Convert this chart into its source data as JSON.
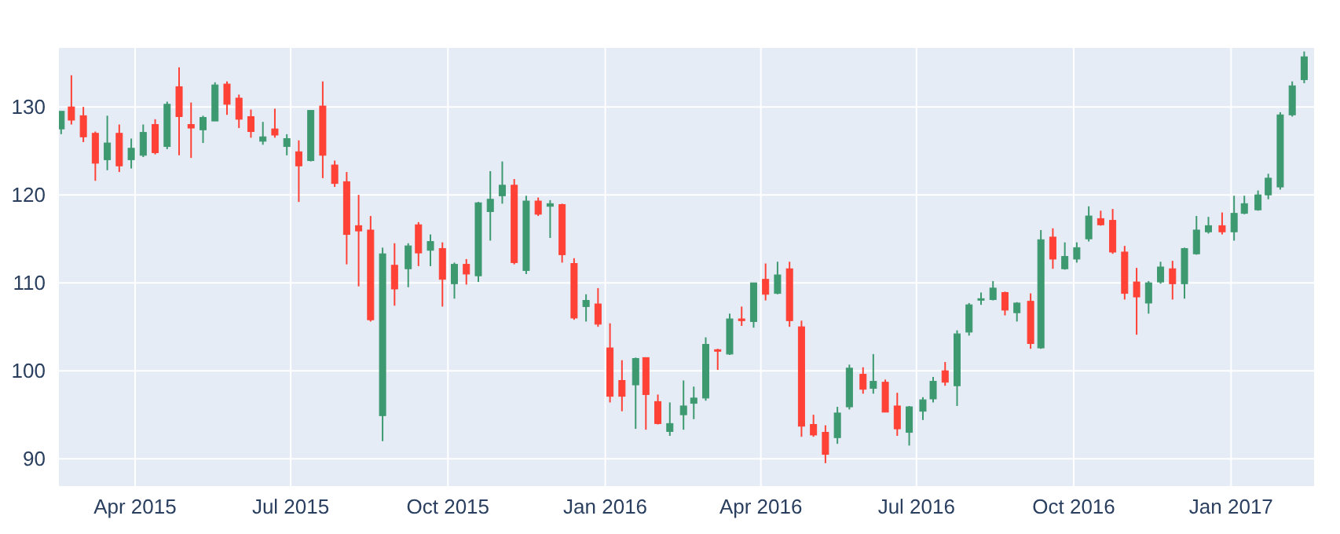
{
  "chart_data": {
    "type": "candlestick",
    "grid": true,
    "xlim": [
      "2015-02-15",
      "2017-02-19"
    ],
    "ylim": [
      86.8,
      136.8
    ],
    "yticks": [
      90,
      100,
      110,
      120,
      130
    ],
    "xticks": [
      {
        "value": "2015-04-01",
        "label": "Apr 2015"
      },
      {
        "value": "2015-07-01",
        "label": "Jul 2015"
      },
      {
        "value": "2015-10-01",
        "label": "Oct 2015"
      },
      {
        "value": "2016-01-01",
        "label": "Jan 2016"
      },
      {
        "value": "2016-04-01",
        "label": "Apr 2016"
      },
      {
        "value": "2016-07-01",
        "label": "Jul 2016"
      },
      {
        "value": "2016-10-01",
        "label": "Oct 2016"
      },
      {
        "value": "2017-01-01",
        "label": "Jan 2017"
      }
    ],
    "x": [
      "2015-02-17",
      "2015-02-23",
      "2015-03-02",
      "2015-03-09",
      "2015-03-16",
      "2015-03-23",
      "2015-03-30",
      "2015-04-06",
      "2015-04-13",
      "2015-04-20",
      "2015-04-27",
      "2015-05-04",
      "2015-05-11",
      "2015-05-18",
      "2015-05-25",
      "2015-06-01",
      "2015-06-08",
      "2015-06-15",
      "2015-06-22",
      "2015-06-29",
      "2015-07-06",
      "2015-07-13",
      "2015-07-20",
      "2015-07-27",
      "2015-08-03",
      "2015-08-10",
      "2015-08-17",
      "2015-08-24",
      "2015-08-31",
      "2015-09-08",
      "2015-09-14",
      "2015-09-21",
      "2015-09-28",
      "2015-10-05",
      "2015-10-12",
      "2015-10-19",
      "2015-10-26",
      "2015-11-02",
      "2015-11-09",
      "2015-11-16",
      "2015-11-23",
      "2015-11-30",
      "2015-12-07",
      "2015-12-14",
      "2015-12-21",
      "2015-12-28",
      "2016-01-04",
      "2016-01-11",
      "2016-01-19",
      "2016-01-25",
      "2016-02-01",
      "2016-02-08",
      "2016-02-16",
      "2016-02-22",
      "2016-02-29",
      "2016-03-07",
      "2016-03-14",
      "2016-03-21",
      "2016-03-28",
      "2016-04-04",
      "2016-04-11",
      "2016-04-18",
      "2016-04-25",
      "2016-05-02",
      "2016-05-09",
      "2016-05-16",
      "2016-05-23",
      "2016-05-31",
      "2016-06-06",
      "2016-06-13",
      "2016-06-20",
      "2016-06-27",
      "2016-07-05",
      "2016-07-11",
      "2016-07-18",
      "2016-07-25",
      "2016-08-01",
      "2016-08-08",
      "2016-08-15",
      "2016-08-22",
      "2016-08-29",
      "2016-09-06",
      "2016-09-12",
      "2016-09-19",
      "2016-09-26",
      "2016-10-03",
      "2016-10-10",
      "2016-10-17",
      "2016-10-24",
      "2016-10-31",
      "2016-11-07",
      "2016-11-14",
      "2016-11-21",
      "2016-11-28",
      "2016-12-05",
      "2016-12-12",
      "2016-12-19",
      "2016-12-27",
      "2017-01-03",
      "2017-01-09",
      "2017-01-17",
      "2017-01-23",
      "2017-01-30",
      "2017-02-06",
      "2017-02-13"
    ],
    "ohlc": [
      [
        127.5,
        129.5,
        126.9,
        129.5
      ],
      [
        130,
        133.6,
        128,
        128.5
      ],
      [
        129,
        130,
        126,
        126.6
      ],
      [
        127,
        127.2,
        121.6,
        123.6
      ],
      [
        124,
        129,
        122.8,
        125.9
      ],
      [
        127,
        128,
        122.6,
        123.3
      ],
      [
        124,
        126.4,
        123,
        125.3
      ],
      [
        124.5,
        128,
        124.3,
        127.1
      ],
      [
        128,
        128.6,
        124.6,
        124.8
      ],
      [
        125.5,
        130.6,
        125.2,
        130.3
      ],
      [
        132.3,
        134.5,
        124.5,
        128.9
      ],
      [
        128,
        130.5,
        124.2,
        127.6
      ],
      [
        127.4,
        129,
        125.9,
        128.8
      ],
      [
        128.4,
        132.8,
        128.4,
        132.5
      ],
      [
        132.6,
        132.9,
        129.1,
        130.3
      ],
      [
        131,
        131.4,
        127.6,
        128.6
      ],
      [
        128.9,
        129.7,
        126.5,
        127.2
      ],
      [
        126.1,
        128.3,
        125.7,
        126.6
      ],
      [
        127.5,
        129.8,
        126.5,
        126.8
      ],
      [
        125.5,
        126.9,
        124.5,
        126.4
      ],
      [
        124.9,
        126.2,
        119.2,
        123.3
      ],
      [
        123.9,
        129.6,
        123.8,
        129.6
      ],
      [
        130.1,
        132.9,
        121.9,
        124.5
      ],
      [
        123.4,
        123.9,
        120.9,
        121.3
      ],
      [
        121.5,
        122.6,
        112.1,
        115.5
      ],
      [
        116.5,
        120,
        109.6,
        115.9
      ],
      [
        116,
        117.6,
        105.6,
        105.8
      ],
      [
        94.9,
        114,
        92,
        113.3
      ],
      [
        112,
        114.5,
        107.4,
        109.3
      ],
      [
        111.6,
        114.5,
        109.5,
        114.2
      ],
      [
        116.6,
        116.9,
        111.9,
        113.4
      ],
      [
        113.7,
        115.5,
        111.9,
        114.7
      ],
      [
        113.9,
        114.6,
        107.3,
        110.4
      ],
      [
        109.9,
        112.3,
        108.2,
        112.1
      ],
      [
        112.1,
        112.7,
        109.8,
        111
      ],
      [
        110.8,
        119.2,
        110.1,
        119.1
      ],
      [
        118.1,
        122.7,
        114.8,
        119.5
      ],
      [
        119.9,
        123.8,
        119,
        121.1
      ],
      [
        121.1,
        121.8,
        112.1,
        112.3
      ],
      [
        111.4,
        119.9,
        111,
        119.3
      ],
      [
        119.3,
        119.7,
        117.6,
        117.8
      ],
      [
        118.7,
        119.4,
        115.1,
        119
      ],
      [
        118.9,
        119,
        112.3,
        113.2
      ],
      [
        112.2,
        112.8,
        105.8,
        106
      ],
      [
        107.3,
        108.7,
        105.6,
        108
      ],
      [
        107.6,
        109.4,
        105,
        105.3
      ],
      [
        102.6,
        105.4,
        96.4,
        97.1
      ],
      [
        98.9,
        101.2,
        95.4,
        97.1
      ],
      [
        98.4,
        101.5,
        93.4,
        101.4
      ],
      [
        101.5,
        101.5,
        93.3,
        97.3
      ],
      [
        96.5,
        97.3,
        93.9,
        94
      ],
      [
        93.1,
        96.4,
        92.6,
        94
      ],
      [
        95,
        98.9,
        93.3,
        96
      ],
      [
        96.3,
        98.2,
        94.5,
        96.9
      ],
      [
        96.9,
        103.8,
        96.6,
        103
      ],
      [
        102.4,
        102.5,
        100.1,
        102.3
      ],
      [
        101.9,
        106.5,
        101.8,
        105.9
      ],
      [
        105.9,
        107.3,
        105.1,
        105.7
      ],
      [
        105.6,
        110,
        104.9,
        110
      ],
      [
        110.4,
        112.2,
        108,
        108.7
      ],
      [
        108.8,
        112.4,
        108.7,
        110.9
      ],
      [
        111.6,
        112.4,
        105,
        105.7
      ],
      [
        105,
        105.7,
        92.5,
        93.7
      ],
      [
        93.9,
        95,
        92.5,
        92.7
      ],
      [
        93,
        93.8,
        89.5,
        90.5
      ],
      [
        92.4,
        95.9,
        91.7,
        95.2
      ],
      [
        95.9,
        100.7,
        95.6,
        100.3
      ],
      [
        99.6,
        100.4,
        97.4,
        97.9
      ],
      [
        98,
        101.9,
        97.4,
        98.8
      ],
      [
        98.7,
        99,
        95.3,
        95.3
      ],
      [
        96,
        97.5,
        92.6,
        93.4
      ],
      [
        93,
        96,
        91.5,
        95.9
      ],
      [
        95.4,
        97,
        94.4,
        96.7
      ],
      [
        96.8,
        99.3,
        96.4,
        98.8
      ],
      [
        100,
        101,
        98.3,
        98.7
      ],
      [
        98.3,
        104.6,
        96,
        104.2
      ],
      [
        104.4,
        107.7,
        104,
        107.5
      ],
      [
        108.2,
        108.9,
        107.5,
        108.2
      ],
      [
        108.1,
        110.2,
        108,
        109.4
      ],
      [
        108.9,
        109,
        106.3,
        106.9
      ],
      [
        106.6,
        107.8,
        105.6,
        107.7
      ],
      [
        107.9,
        108.8,
        102.5,
        103.1
      ],
      [
        102.6,
        116,
        102.5,
        114.9
      ],
      [
        115.2,
        116.2,
        111.6,
        112.7
      ],
      [
        111.6,
        114.6,
        111.5,
        113
      ],
      [
        112.7,
        114.6,
        112.3,
        114
      ],
      [
        115,
        118.7,
        114.7,
        117.6
      ],
      [
        117.3,
        118.2,
        116.5,
        116.6
      ],
      [
        117.1,
        118.4,
        113.3,
        113.5
      ],
      [
        113.5,
        114.2,
        108.1,
        108.8
      ],
      [
        110.1,
        111.7,
        104.1,
        108.4
      ],
      [
        107.7,
        110.2,
        106.5,
        110
      ],
      [
        110.1,
        112.4,
        109.9,
        111.8
      ],
      [
        111.6,
        112.5,
        108.1,
        109.9
      ],
      [
        109.9,
        114,
        108.2,
        113.9
      ],
      [
        113.3,
        117.6,
        113.2,
        116
      ],
      [
        115.8,
        117.5,
        115.6,
        116.5
      ],
      [
        116.5,
        118,
        115.5,
        115.8
      ],
      [
        115.8,
        119.9,
        114.8,
        117.9
      ],
      [
        117.9,
        119.9,
        117.8,
        119
      ],
      [
        118.3,
        120.5,
        118.2,
        120
      ],
      [
        120,
        122.4,
        119.5,
        121.9
      ],
      [
        120.9,
        129.4,
        120.6,
        129.1
      ],
      [
        129.1,
        132.9,
        128.9,
        132.4
      ],
      [
        133.1,
        136.3,
        132.7,
        135.7
      ]
    ],
    "colors": [
      "#3d9970",
      "#ff4136",
      "#ff4136",
      "#ff4136",
      "#3d9970",
      "#ff4136",
      "#3d9970",
      "#3d9970",
      "#ff4136",
      "#3d9970",
      "#ff4136",
      "#ff4136",
      "#3d9970",
      "#3d9970",
      "#ff4136",
      "#ff4136",
      "#ff4136",
      "#3d9970",
      "#ff4136",
      "#3d9970",
      "#ff4136",
      "#3d9970",
      "#ff4136",
      "#ff4136",
      "#ff4136",
      "#ff4136",
      "#ff4136",
      "#3d9970",
      "#ff4136",
      "#3d9970",
      "#ff4136",
      "#3d9970",
      "#ff4136",
      "#3d9970",
      "#ff4136",
      "#3d9970",
      "#3d9970",
      "#3d9970",
      "#ff4136",
      "#3d9970",
      "#ff4136",
      "#3d9970",
      "#ff4136",
      "#ff4136",
      "#3d9970",
      "#ff4136",
      "#ff4136",
      "#ff4136",
      "#3d9970",
      "#ff4136",
      "#ff4136",
      "#3d9970",
      "#3d9970",
      "#3d9970",
      "#3d9970",
      "#ff4136",
      "#3d9970",
      "#ff4136",
      "#3d9970",
      "#ff4136",
      "#3d9970",
      "#ff4136",
      "#ff4136",
      "#ff4136",
      "#ff4136",
      "#3d9970",
      "#3d9970",
      "#ff4136",
      "#3d9970",
      "#ff4136",
      "#ff4136",
      "#3d9970",
      "#3d9970",
      "#3d9970",
      "#ff4136",
      "#3d9970",
      "#3d9970",
      "#3d9970",
      "#3d9970",
      "#ff4136",
      "#3d9970",
      "#ff4136",
      "#3d9970",
      "#ff4136",
      "#3d9970",
      "#3d9970",
      "#3d9970",
      "#ff4136",
      "#ff4136",
      "#ff4136",
      "#ff4136",
      "#3d9970",
      "#3d9970",
      "#ff4136",
      "#3d9970",
      "#3d9970",
      "#3d9970",
      "#ff4136",
      "#3d9970",
      "#3d9970",
      "#3d9970",
      "#3d9970",
      "#3d9970",
      "#3d9970",
      "#3d9970"
    ]
  }
}
